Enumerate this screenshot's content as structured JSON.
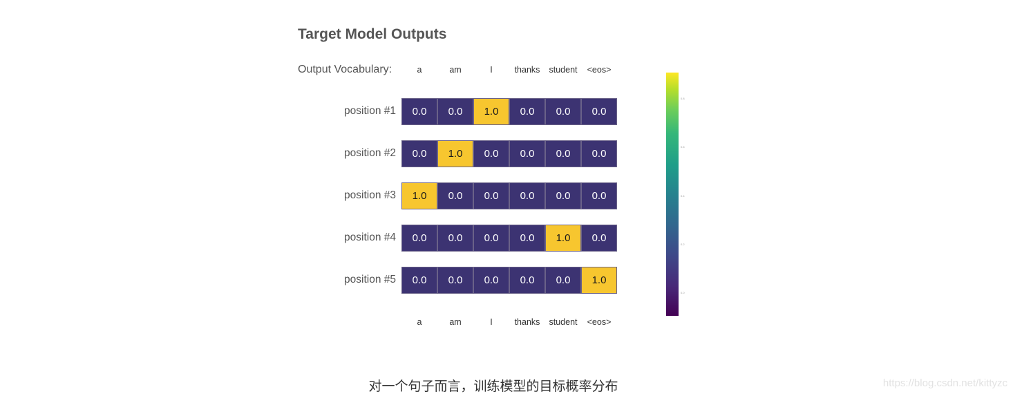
{
  "chart_data": {
    "type": "heatmap",
    "title": "Target Model Outputs",
    "vocab_label": "Output Vocabulary:",
    "categories": [
      "a",
      "am",
      "I",
      "thanks",
      "student",
      "<eos>"
    ],
    "rows": [
      "position #1",
      "position #2",
      "position #3",
      "position #4",
      "position #5"
    ],
    "values": [
      [
        0.0,
        0.0,
        1.0,
        0.0,
        0.0,
        0.0
      ],
      [
        0.0,
        1.0,
        0.0,
        0.0,
        0.0,
        0.0
      ],
      [
        1.0,
        0.0,
        0.0,
        0.0,
        0.0,
        0.0
      ],
      [
        0.0,
        0.0,
        0.0,
        0.0,
        1.0,
        0.0
      ],
      [
        0.0,
        0.0,
        0.0,
        0.0,
        0.0,
        1.0
      ]
    ],
    "colorbar_ticks": [
      "0.8",
      "0.6",
      "0.4",
      "0.2",
      "0.0"
    ],
    "colors": {
      "low": "#3c3372",
      "high": "#f7c62f",
      "low_text": "#ffffff",
      "high_text": "#1a1a1a"
    }
  },
  "caption": "对一个句子而言，训练模型的目标概率分布",
  "watermark": "https://blog.csdn.net/kittyzc"
}
